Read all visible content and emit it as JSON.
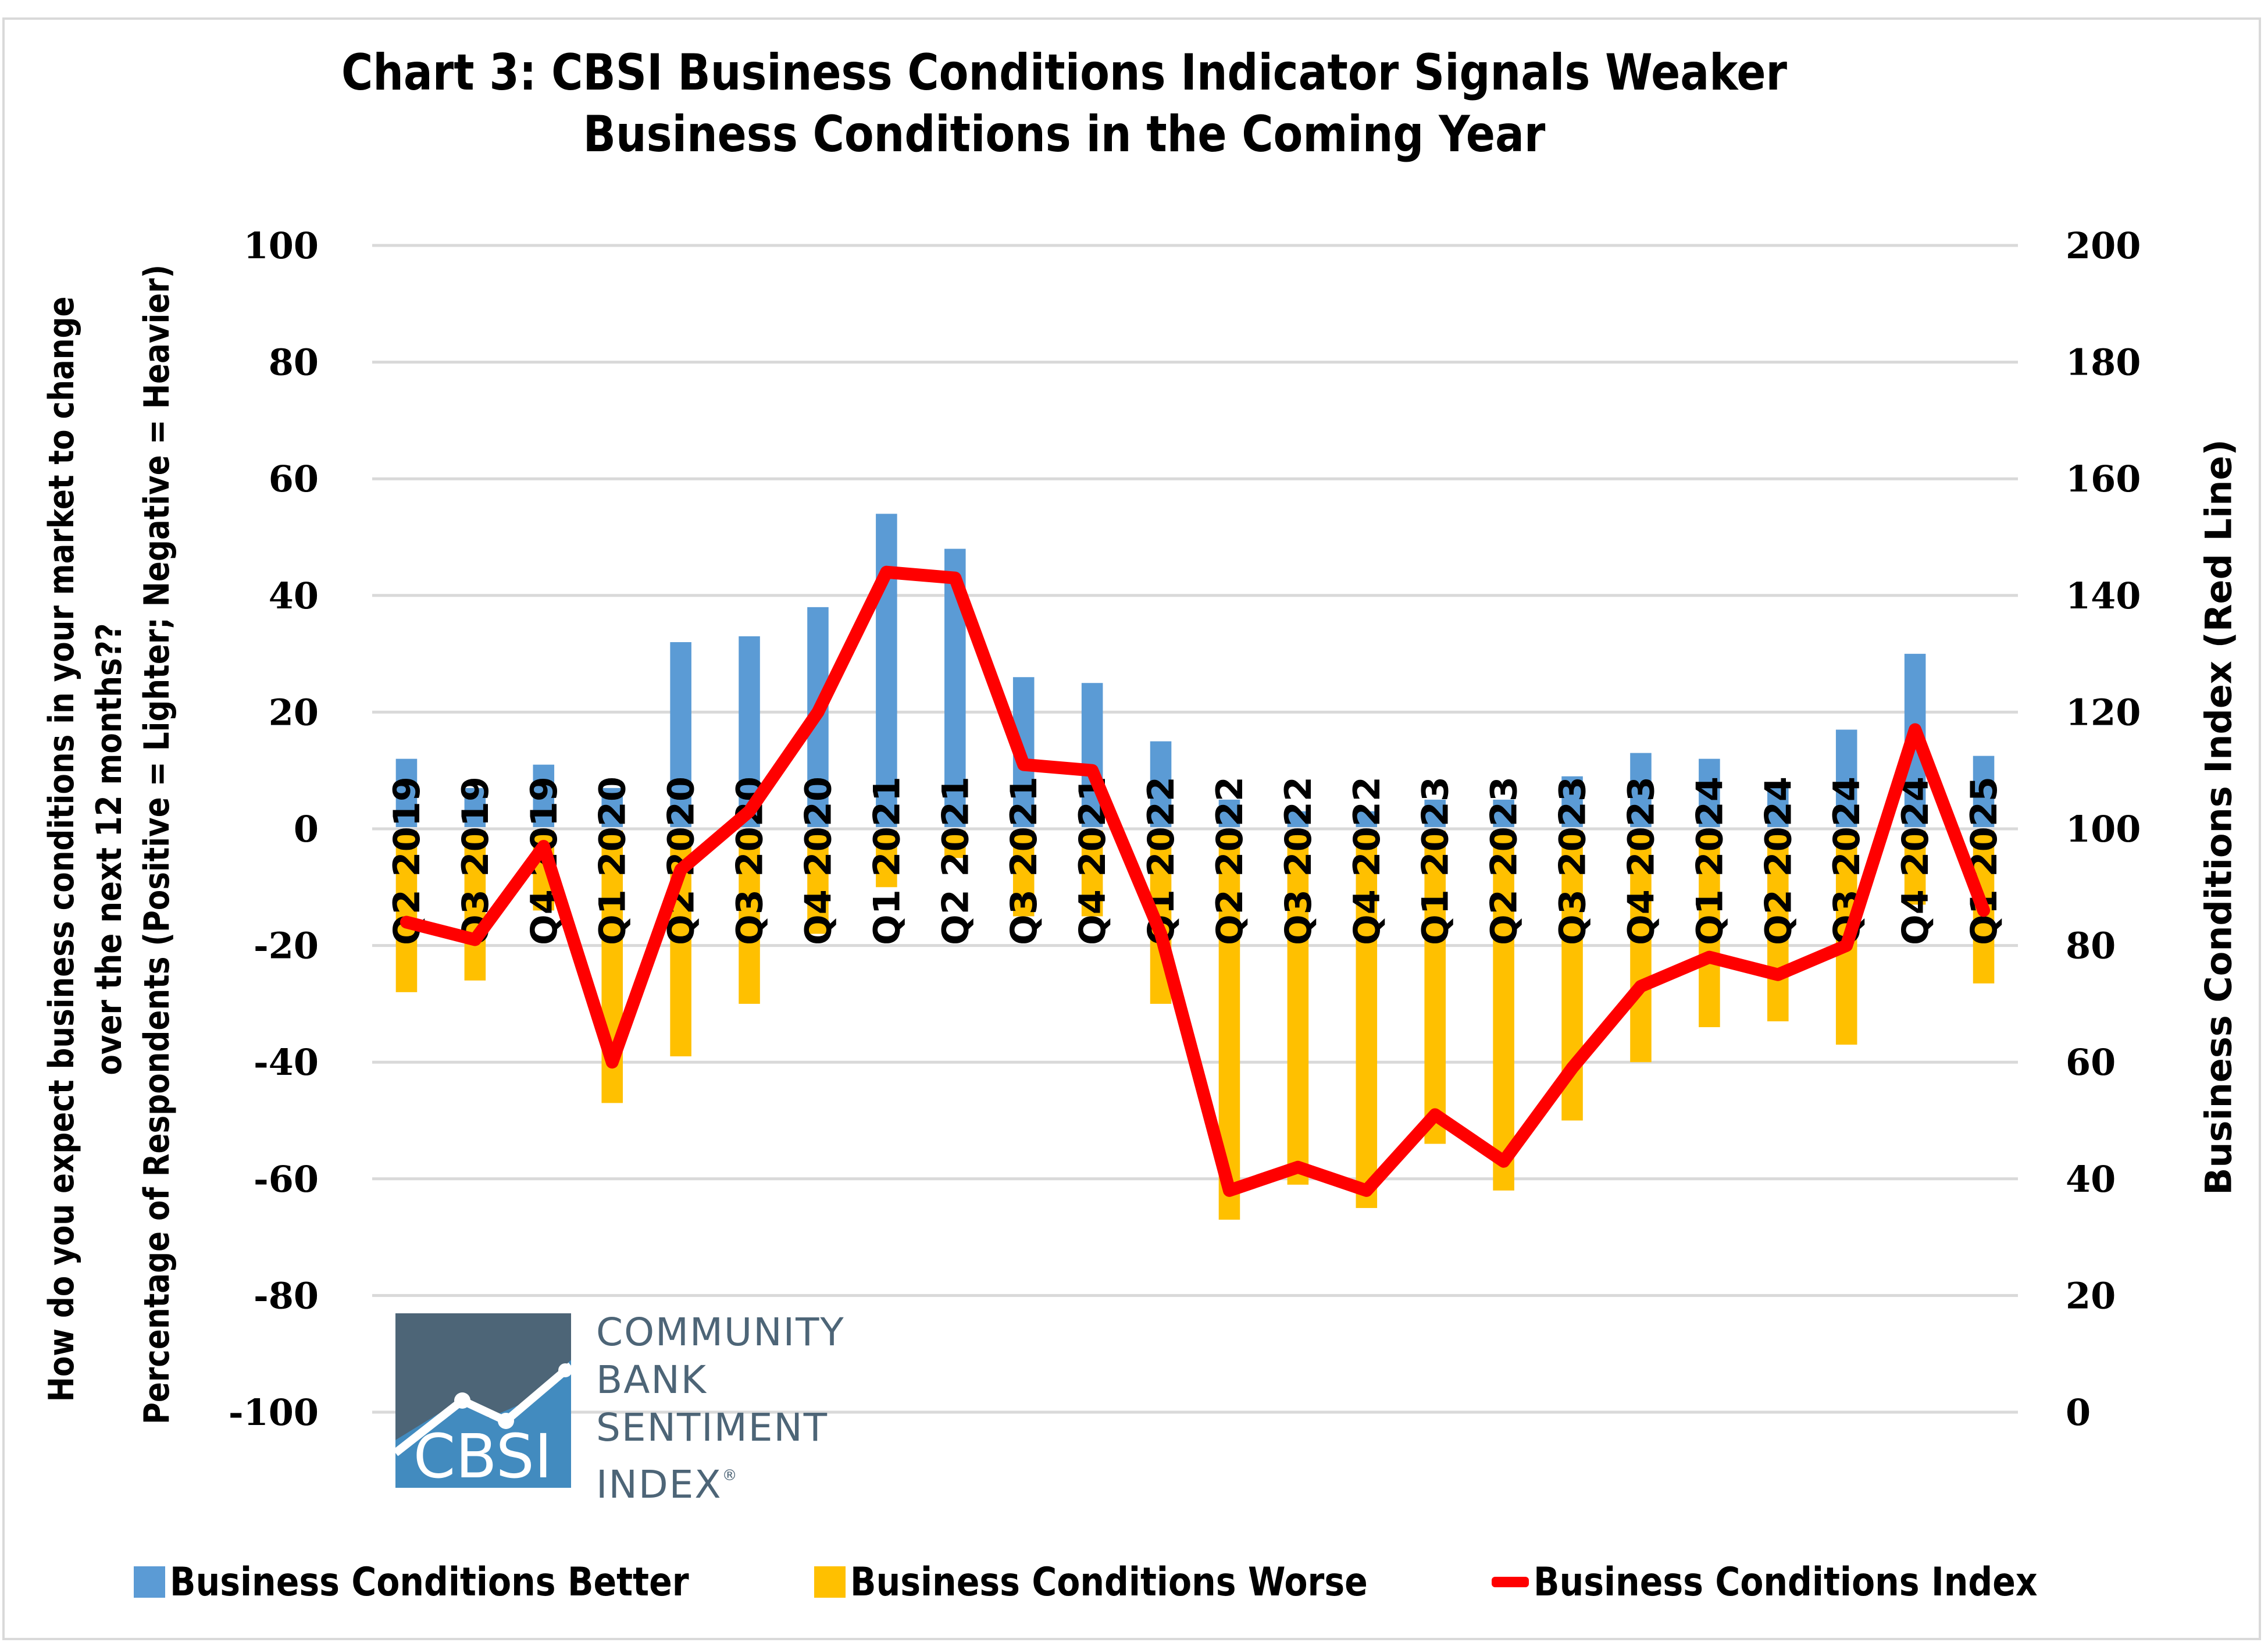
{
  "chart_data": {
    "type": "bar",
    "title": "Chart 3: CBSI Business Conditions Indicator Signals Weaker Business Conditions in the Coming Year",
    "title_lines": [
      "Chart 3: CBSI Business Conditions Indicator Signals Weaker",
      "Business Conditions in the Coming Year"
    ],
    "ylabel_left_lines": [
      "How do you expect business conditions in your market to change",
      "over the next 12 months??",
      "Percentage of Respondents (Positive = Lighter; Negative = Heavier)"
    ],
    "ylabel_right": "Business Conditions Index (Red Line)",
    "xlabel": "",
    "ylim_left": [
      -100,
      100
    ],
    "ylim_right": [
      0,
      200
    ],
    "yticks_left": [
      "100",
      "80",
      "60",
      "40",
      "20",
      "0",
      "-20",
      "-40",
      "-60",
      "-80",
      "-100"
    ],
    "yticks_right": [
      "200",
      "180",
      "160",
      "140",
      "120",
      "100",
      "80",
      "60",
      "40",
      "20",
      "0"
    ],
    "grid": true,
    "legend_position": "bottom",
    "categories": [
      "Q2 2019",
      "Q3 2019",
      "Q4 2019",
      "Q1 2020",
      "Q2 2020",
      "Q3 2020",
      "Q4 2020",
      "Q1 2021",
      "Q2 2021",
      "Q3 2021",
      "Q4 2021",
      "Q1 2022",
      "Q2 2022",
      "Q3 2022",
      "Q4 2022",
      "Q1 2023",
      "Q2 2023",
      "Q3 2023",
      "Q4 2023",
      "Q1 2024",
      "Q2 2024",
      "Q3 2024",
      "Q4 2024",
      "Q1 2025"
    ],
    "series": [
      {
        "name": "Business Conditions Better",
        "type": "bar",
        "axis": "left",
        "color": "#5b9bd5",
        "values": [
          12,
          7,
          11,
          7,
          32,
          33,
          38,
          54,
          48,
          26,
          25,
          15,
          5,
          3,
          3,
          5,
          5,
          9,
          13,
          12,
          8,
          17,
          30,
          12.5
        ]
      },
      {
        "name": "Business Conditions Worse",
        "type": "bar",
        "axis": "left",
        "color": "#ffc000",
        "values": [
          -28,
          -26,
          -14,
          -47,
          -39,
          -30,
          -18,
          -10,
          -5,
          -15,
          -15,
          -30,
          -67,
          -61,
          -65,
          -54,
          -62,
          -50,
          -40,
          -34,
          -33,
          -37,
          -13,
          -26.5
        ]
      },
      {
        "name": "Business Conditions Index",
        "type": "line",
        "axis": "right",
        "color": "#ff0000",
        "values": [
          84,
          81,
          97,
          60,
          93,
          103,
          120,
          144,
          143,
          111,
          110,
          82,
          38,
          42,
          38,
          51,
          43,
          59,
          73,
          78,
          75,
          80,
          117,
          86
        ]
      }
    ]
  },
  "logo": {
    "mark_text": "CBSI",
    "lines": [
      "COMMUNITY",
      "BANK",
      "SENTIMENT",
      "INDEX"
    ],
    "registered": "®",
    "colors": {
      "dark": "#4d6577",
      "light": "#428bbf"
    }
  },
  "colors": {
    "gridline": "#d9d9d9",
    "border": "#d9d9d9"
  }
}
